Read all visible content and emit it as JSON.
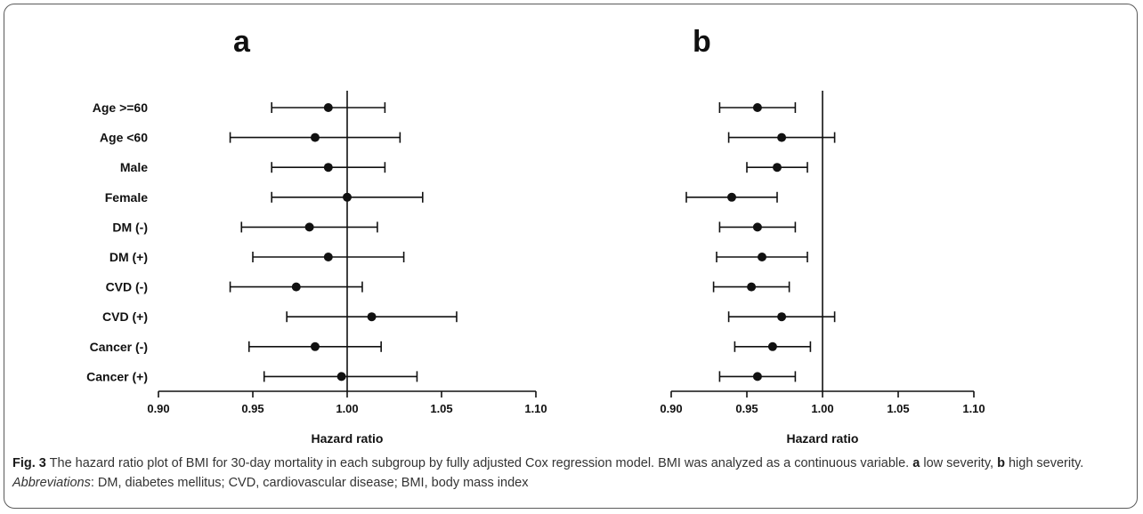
{
  "chart_data": [
    {
      "panel": "a",
      "type": "scatter",
      "subtype": "forest-plot",
      "categories": [
        "Age >=60",
        "Age <60",
        "Male",
        "Female",
        "DM (-)",
        "DM (+)",
        "CVD (-)",
        "CVD (+)",
        "Cancer (-)",
        "Cancer (+)"
      ],
      "estimate": [
        0.99,
        0.983,
        0.99,
        1.0,
        0.98,
        0.99,
        0.973,
        1.013,
        0.983,
        0.997
      ],
      "ci_low": [
        0.96,
        0.938,
        0.96,
        0.96,
        0.944,
        0.95,
        0.938,
        0.968,
        0.948,
        0.956
      ],
      "ci_high": [
        1.02,
        1.028,
        1.02,
        1.04,
        1.016,
        1.03,
        1.008,
        1.058,
        1.018,
        1.037
      ],
      "xlim": [
        0.9,
        1.1
      ],
      "xticks": [
        "0.90",
        "0.95",
        "1.00",
        "1.05",
        "1.10"
      ],
      "reference_line": 1.0,
      "xlabel": "Hazard ratio"
    },
    {
      "panel": "b",
      "type": "scatter",
      "subtype": "forest-plot",
      "categories": [
        "Age >=60",
        "Age <60",
        "Male",
        "Female",
        "DM (-)",
        "DM (+)",
        "CVD (-)",
        "CVD (+)",
        "Cancer (-)",
        "Cancer (+)"
      ],
      "estimate": [
        0.957,
        0.973,
        0.97,
        0.94,
        0.957,
        0.96,
        0.953,
        0.973,
        0.967,
        0.957
      ],
      "ci_low": [
        0.932,
        0.938,
        0.95,
        0.91,
        0.932,
        0.93,
        0.928,
        0.938,
        0.942,
        0.932
      ],
      "ci_high": [
        0.982,
        1.008,
        0.99,
        0.97,
        0.982,
        0.99,
        0.978,
        1.008,
        0.992,
        0.982
      ],
      "xlim": [
        0.9,
        1.1
      ],
      "xticks": [
        "0.90",
        "0.95",
        "1.00",
        "1.05",
        "1.10"
      ],
      "reference_line": 1.0,
      "xlabel": "Hazard ratio"
    }
  ],
  "caption": {
    "fig_label": "Fig. 3",
    "text1": " The hazard ratio plot of BMI for 30-day mortality in each subgroup by fully adjusted Cox regression model. BMI was analyzed as a continuous variable. ",
    "a_label": "a",
    "a_text": " low severity, ",
    "b_label": "b",
    "b_text": " high severity. ",
    "abbr_label": "Abbreviations",
    "abbr_text": ": DM, diabetes mellitus; CVD, cardiovascular disease; BMI, body mass index"
  },
  "colors": {
    "ink": "#111111",
    "frame": "#5a5a5a",
    "caption": "#333333"
  }
}
